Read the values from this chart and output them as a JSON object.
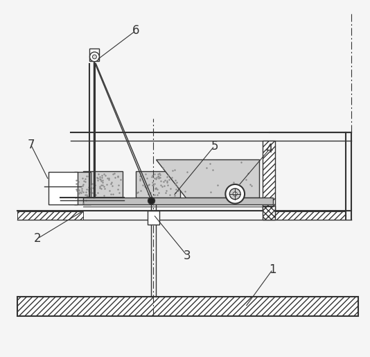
{
  "bg_color": "#f5f5f5",
  "line_color": "#333333",
  "label_color": "#333333",
  "fig_width": 5.34,
  "fig_height": 5.15,
  "dpi": 100,
  "label_fontsize": 12
}
